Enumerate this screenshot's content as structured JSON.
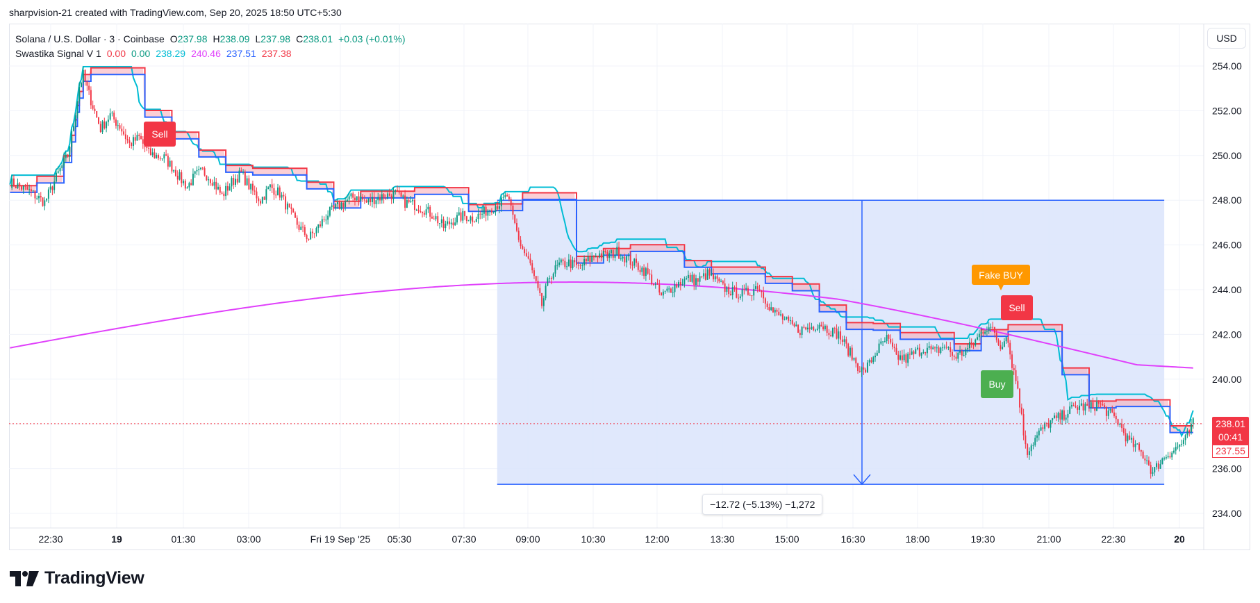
{
  "credit": "sharpvision-21 created with TradingView.com, Sep 20, 2025 18:50 UTC+5:30",
  "legend": {
    "symbol": "Solana / U.S. Dollar · 3 · Coinbase",
    "open_label": "O",
    "open": "237.98",
    "high_label": "H",
    "high": "238.09",
    "low_label": "L",
    "low": "237.98",
    "close_label": "C",
    "close": "238.01",
    "change": "+0.03 (+0.01%)",
    "indicator_name": "Swastika Signal V 1",
    "indicator_values": [
      "0.00",
      "0.00",
      "238.29",
      "240.46",
      "237.51",
      "237.38"
    ],
    "indicator_colors": [
      "#f23645",
      "#089981",
      "#00bcd4",
      "#e040fb",
      "#2962ff",
      "#f23645"
    ]
  },
  "currency_button": "USD",
  "signals": {
    "sell_1": "Sell",
    "sell_2": "Sell",
    "buy": "Buy",
    "fake_buy": "Fake BUY"
  },
  "measure_label": "−12.72 (−5.13%) −1,272",
  "price_tags": {
    "close": "238.01",
    "countdown": "00:41",
    "ma": "237.55"
  },
  "footer_logo": "TradingView",
  "colors": {
    "up": "#089981",
    "down": "#f23645",
    "cyan": "#00bcd4",
    "magenta": "#e040fb",
    "blue": "#2962ff",
    "red": "#f23645",
    "green_fill": "#a5d6a7",
    "red_fill": "#f7a8b3",
    "measure_fill": "#dbe4fc",
    "measure_line": "#2962ff"
  },
  "chart_data": {
    "type": "candlestick",
    "instrument": "Solana / U.S. Dollar",
    "timeframe": "3",
    "exchange": "Coinbase",
    "ylim": [
      233.5,
      255.0
    ],
    "y_ticks": [
      "254.00",
      "252.00",
      "250.00",
      "248.00",
      "246.00",
      "244.00",
      "242.00",
      "240.00",
      "238.00",
      "236.00",
      "234.00"
    ],
    "y_tick_values": [
      254,
      252,
      250,
      248,
      246,
      244,
      242,
      240,
      238,
      236,
      234
    ],
    "x_ticks": [
      "22:30",
      "19",
      "01:30",
      "03:00",
      "Fri 19 Sep '25",
      "05:30",
      "07:30",
      "09:00",
      "10:30",
      "12:00",
      "13:30",
      "15:00",
      "16:30",
      "18:00",
      "19:30",
      "21:00",
      "22:30",
      "20"
    ],
    "price_path": [
      [
        0,
        248.8
      ],
      [
        10,
        248.4
      ],
      [
        18,
        247.9
      ],
      [
        25,
        249.2
      ],
      [
        30,
        250.0
      ],
      [
        33,
        251.4
      ],
      [
        36,
        253.1
      ],
      [
        38,
        253.6
      ],
      [
        40,
        253.0
      ],
      [
        43,
        252.2
      ],
      [
        47,
        251.2
      ],
      [
        52,
        251.8
      ],
      [
        57,
        251.3
      ],
      [
        62,
        250.5
      ],
      [
        67,
        250.8
      ],
      [
        72,
        250.1
      ],
      [
        75,
        250.0
      ],
      [
        80,
        249.9
      ],
      [
        85,
        249.4
      ],
      [
        88,
        249.0
      ],
      [
        92,
        248.6
      ],
      [
        96,
        249.1
      ],
      [
        100,
        249.3
      ],
      [
        105,
        248.9
      ],
      [
        110,
        248.2
      ],
      [
        115,
        248.8
      ],
      [
        120,
        249.2
      ],
      [
        125,
        248.5
      ],
      [
        130,
        248.0
      ],
      [
        135,
        248.6
      ],
      [
        140,
        248.3
      ],
      [
        145,
        247.5
      ],
      [
        150,
        246.8
      ],
      [
        155,
        246.3
      ],
      [
        160,
        246.8
      ],
      [
        165,
        247.4
      ],
      [
        170,
        247.7
      ],
      [
        175,
        248.0
      ],
      [
        180,
        248.2
      ],
      [
        185,
        247.9
      ],
      [
        190,
        248.1
      ],
      [
        195,
        248.2
      ],
      [
        200,
        248.3
      ],
      [
        205,
        247.9
      ],
      [
        210,
        247.8
      ],
      [
        215,
        247.6
      ],
      [
        220,
        247.3
      ],
      [
        225,
        246.8
      ],
      [
        230,
        247.1
      ],
      [
        235,
        247.3
      ],
      [
        240,
        247.2
      ],
      [
        245,
        247.4
      ],
      [
        250,
        247.7
      ],
      [
        255,
        247.9
      ],
      [
        258,
        248.2
      ],
      [
        261,
        247.2
      ],
      [
        265,
        246.0
      ],
      [
        270,
        245.1
      ],
      [
        273,
        244.2
      ],
      [
        276,
        243.3
      ],
      [
        280,
        244.6
      ],
      [
        285,
        245.1
      ],
      [
        290,
        245.2
      ],
      [
        295,
        245.0
      ],
      [
        300,
        245.3
      ],
      [
        305,
        245.6
      ],
      [
        310,
        245.5
      ],
      [
        315,
        245.7
      ],
      [
        320,
        245.4
      ],
      [
        325,
        245.1
      ],
      [
        330,
        244.8
      ],
      [
        334,
        244.3
      ],
      [
        338,
        243.7
      ],
      [
        342,
        244.0
      ],
      [
        347,
        244.3
      ],
      [
        352,
        244.5
      ],
      [
        357,
        244.4
      ],
      [
        362,
        244.7
      ],
      [
        365,
        244.5
      ],
      [
        370,
        244.1
      ],
      [
        375,
        243.9
      ],
      [
        380,
        243.8
      ],
      [
        384,
        243.9
      ],
      [
        388,
        244.2
      ],
      [
        392,
        243.6
      ],
      [
        396,
        243.0
      ],
      [
        400,
        242.8
      ],
      [
        405,
        242.4
      ],
      [
        410,
        242.2
      ],
      [
        415,
        242.3
      ],
      [
        420,
        242.5
      ],
      [
        425,
        242.2
      ],
      [
        430,
        242.0
      ],
      [
        435,
        241.3
      ],
      [
        440,
        240.6
      ],
      [
        443,
        240.3
      ],
      [
        446,
        240.7
      ],
      [
        450,
        241.3
      ],
      [
        455,
        241.8
      ],
      [
        460,
        241.0
      ],
      [
        465,
        240.9
      ],
      [
        470,
        241.2
      ],
      [
        475,
        241.4
      ],
      [
        480,
        241.2
      ],
      [
        485,
        241.5
      ],
      [
        490,
        241.0
      ],
      [
        495,
        241.2
      ],
      [
        500,
        241.6
      ],
      [
        505,
        242.2
      ],
      [
        508,
        242.4
      ],
      [
        511,
        242.0
      ],
      [
        514,
        241.4
      ],
      [
        517,
        242.1
      ],
      [
        520,
        240.7
      ],
      [
        523,
        239.6
      ],
      [
        526,
        237.6
      ],
      [
        528,
        236.8
      ],
      [
        531,
        237.2
      ],
      [
        535,
        237.7
      ],
      [
        540,
        238.1
      ],
      [
        545,
        238.3
      ],
      [
        550,
        238.6
      ],
      [
        555,
        238.8
      ],
      [
        560,
        238.7
      ],
      [
        565,
        238.9
      ],
      [
        570,
        238.5
      ],
      [
        575,
        238.1
      ],
      [
        580,
        237.3
      ],
      [
        585,
        236.9
      ],
      [
        590,
        236.4
      ],
      [
        593,
        235.8
      ],
      [
        596,
        236.2
      ],
      [
        600,
        236.6
      ],
      [
        605,
        236.9
      ],
      [
        610,
        237.3
      ],
      [
        614,
        238.01
      ]
    ]
  },
  "measure": {
    "top_value": 248.0,
    "bottom_value": 235.3,
    "change": "−12.72",
    "change_pct": "−5.13%",
    "bars": "−1,272"
  }
}
